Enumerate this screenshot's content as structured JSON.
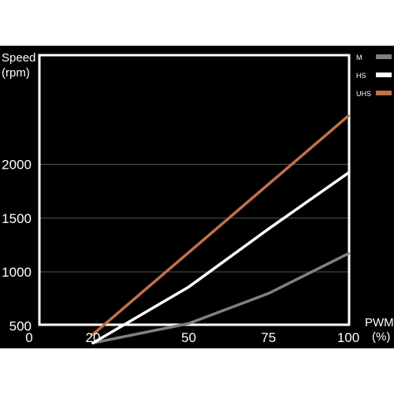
{
  "chart_data": {
    "type": "line",
    "ylabel_line1": "Speed",
    "ylabel_line2": "(rpm)",
    "xlabel_line1": "PWM",
    "xlabel_line2": "(%)",
    "x_ticks": [
      0,
      20,
      50,
      75,
      100
    ],
    "y_ticks": [
      500,
      1000,
      1500,
      2000
    ],
    "xlim": [
      0,
      100
    ],
    "ylim": [
      0,
      2500
    ],
    "grid": true,
    "legend_position": "top-right",
    "series": [
      {
        "name": "M",
        "color": "#808080",
        "x": [
          20,
          50,
          75,
          100
        ],
        "y": [
          340,
          520,
          800,
          1170
        ]
      },
      {
        "name": "HS",
        "color": "#ffffff",
        "x": [
          20,
          50,
          75,
          100
        ],
        "y": [
          340,
          860,
          1400,
          1920
        ]
      },
      {
        "name": "UHS",
        "color": "#c0714a",
        "x": [
          20,
          100
        ],
        "y": [
          420,
          2450
        ]
      }
    ]
  },
  "colors": {
    "frame_background": "#000000",
    "plot_background": "#000000",
    "plot_border": "#ffffff",
    "text": "#ffffff",
    "grid": "#555555"
  }
}
